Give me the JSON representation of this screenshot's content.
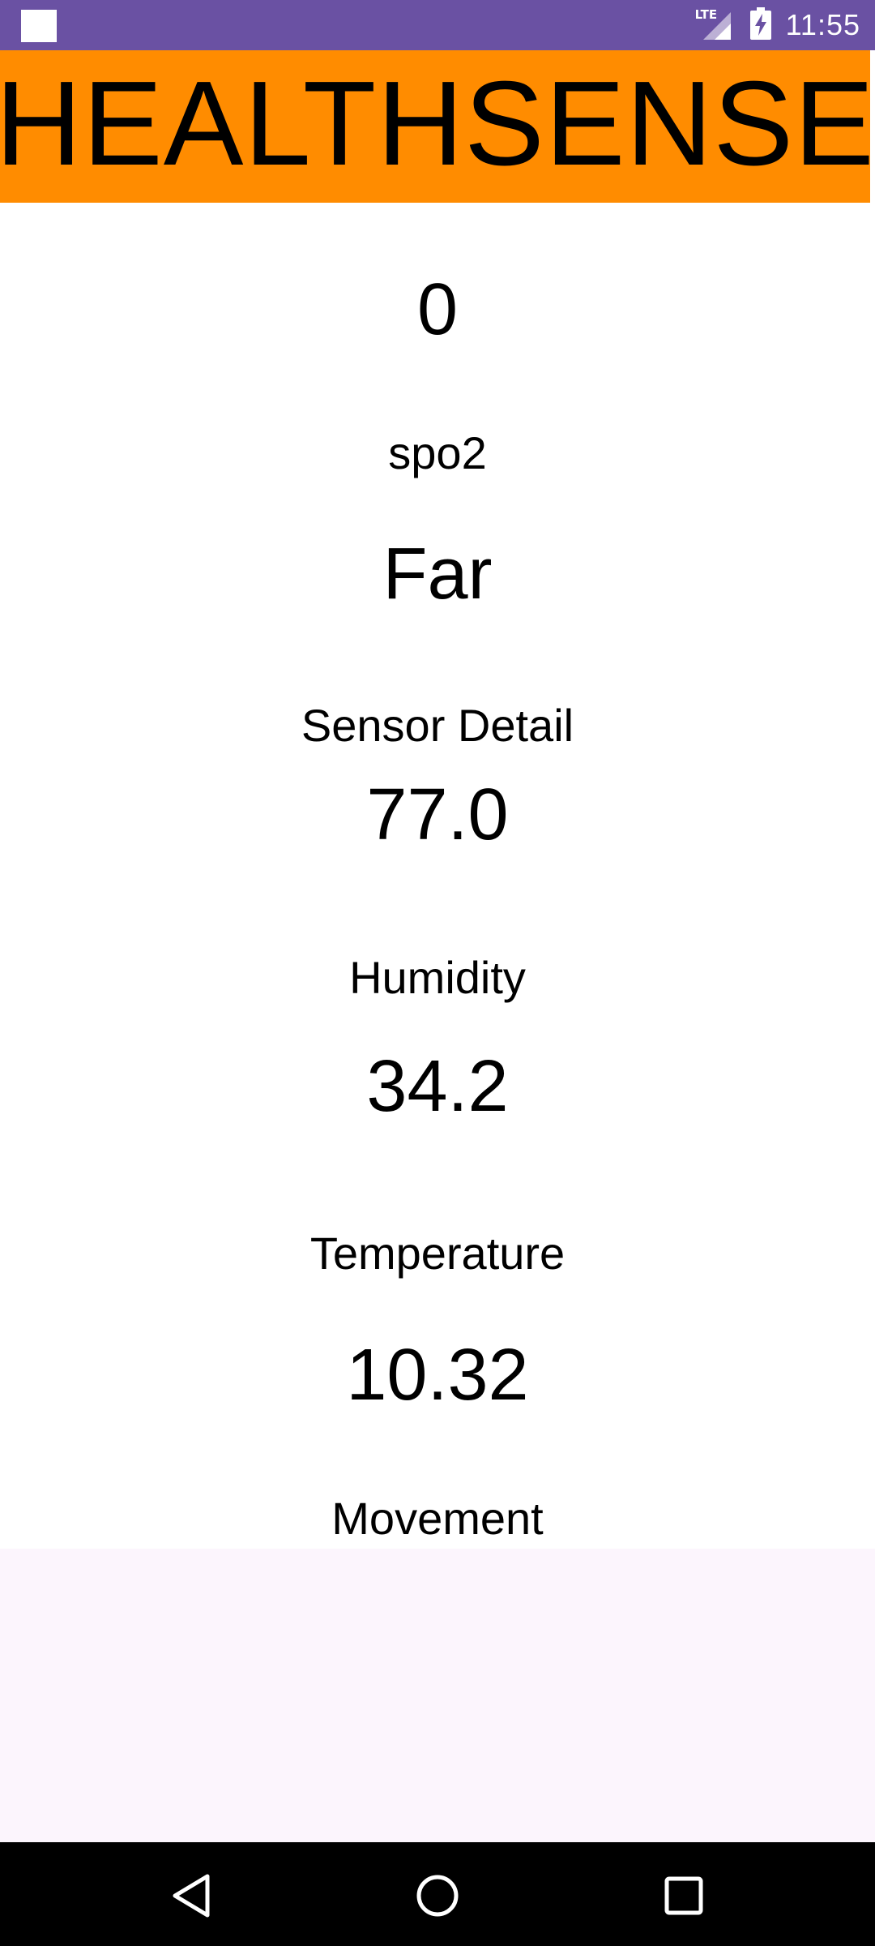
{
  "status_bar": {
    "network": "LTE",
    "time": "11:55",
    "background_color": "#6a51a3"
  },
  "header": {
    "title": "HEALTHSENSE",
    "background_color": "#ff8c00"
  },
  "readings": {
    "spo2_value": "0",
    "spo2_label": "spo2",
    "sensor_value": "Far",
    "sensor_label": "Sensor Detail",
    "humidity_value": "77.0",
    "humidity_label": "Humidity",
    "temperature_value": "34.2",
    "temperature_label": "Temperature",
    "movement_value": "10.32",
    "movement_label": "Movement"
  },
  "navigation": {
    "back_icon": "back-triangle-icon",
    "home_icon": "home-circle-icon",
    "recents_icon": "recents-square-icon"
  }
}
